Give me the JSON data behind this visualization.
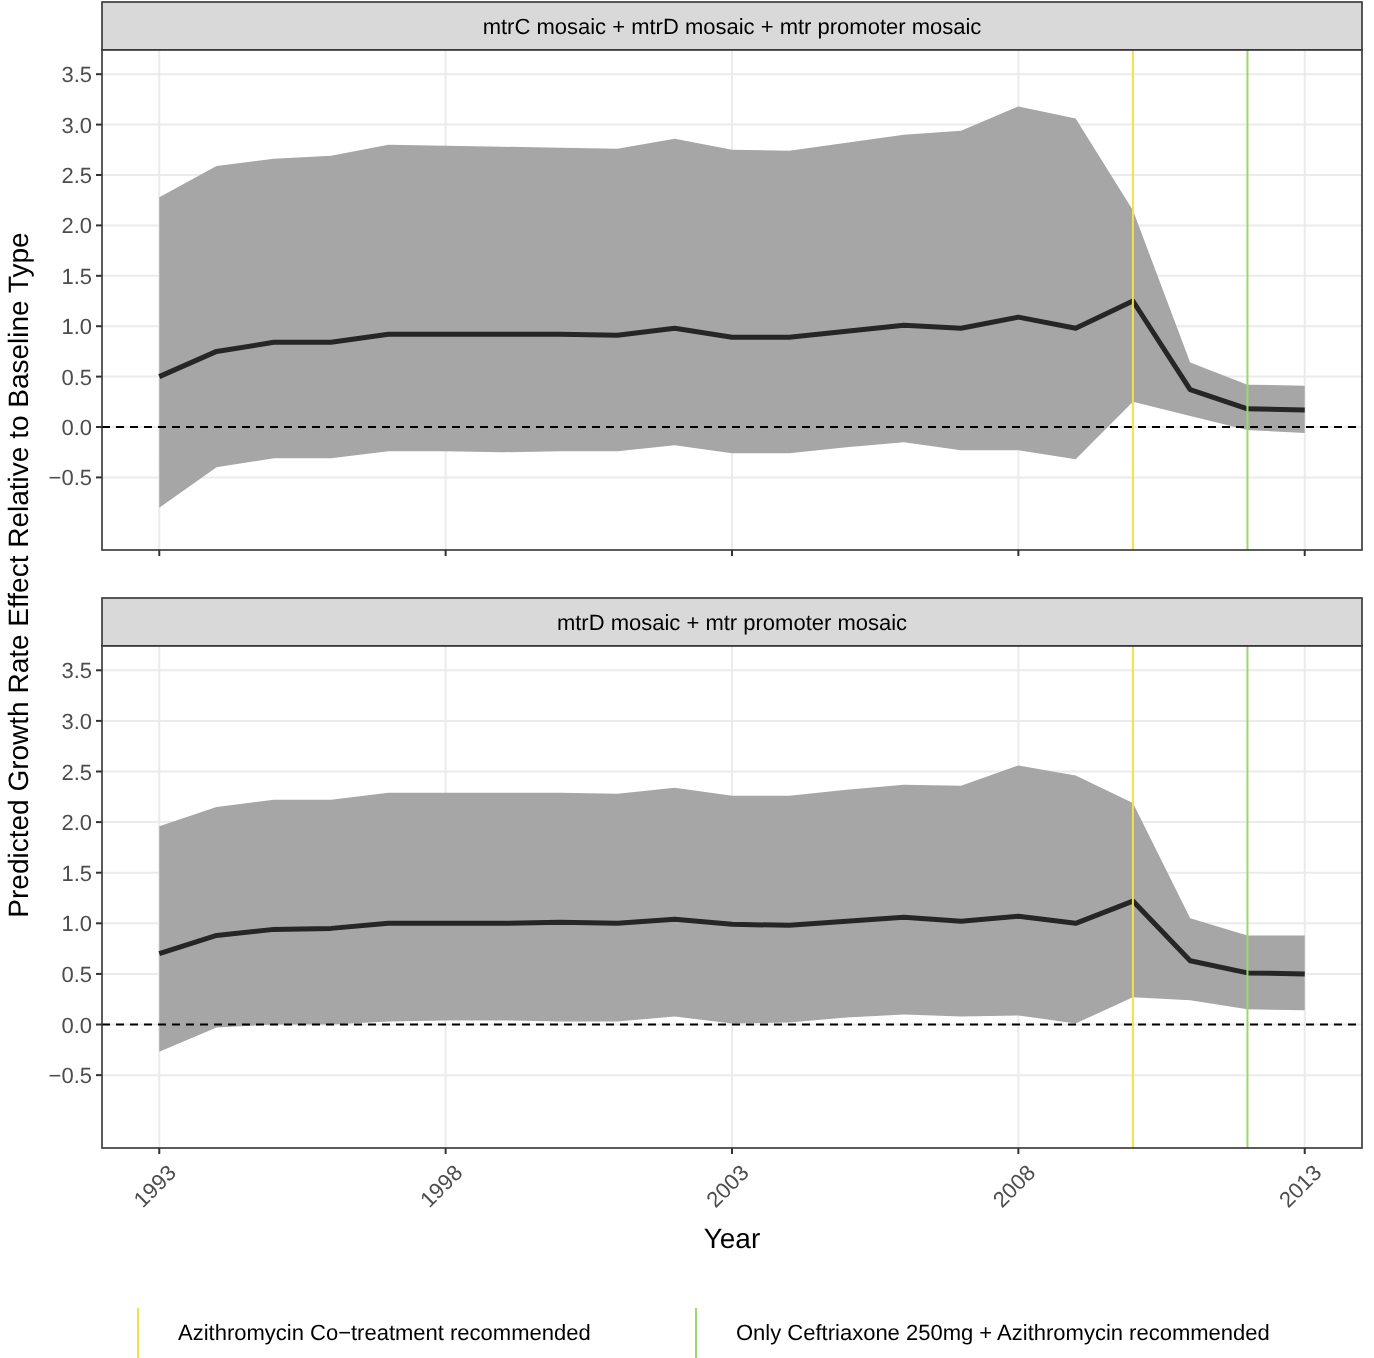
{
  "chart_data": [
    {
      "type": "line",
      "title": "mtrC mosaic + mtrD mosaic + mtr promoter mosaic",
      "ylabel": "Predicted Growth Rate Effect Relative to Baseline Type",
      "x": [
        1993,
        1994,
        1995,
        1996,
        1997,
        1998,
        1999,
        2000,
        2001,
        2002,
        2003,
        2004,
        2005,
        2006,
        2007,
        2008,
        2009,
        2010,
        2011,
        2012,
        2013
      ],
      "series": [
        {
          "color": "#262626",
          "values": [
            0.5,
            0.75,
            0.84,
            0.84,
            0.92,
            0.92,
            0.92,
            0.92,
            0.91,
            0.98,
            0.89,
            0.89,
            0.95,
            1.01,
            0.98,
            1.09,
            0.98,
            1.25,
            0.37,
            0.18,
            0.17
          ],
          "upper": [
            2.28,
            2.59,
            2.66,
            2.69,
            2.8,
            2.79,
            2.78,
            2.77,
            2.76,
            2.86,
            2.75,
            2.74,
            2.82,
            2.9,
            2.94,
            3.18,
            3.06,
            2.15,
            0.64,
            0.42,
            0.41
          ],
          "lower": [
            -0.8,
            -0.4,
            -0.31,
            -0.31,
            -0.24,
            -0.24,
            -0.25,
            -0.24,
            -0.24,
            -0.18,
            -0.26,
            -0.26,
            -0.2,
            -0.15,
            -0.23,
            -0.23,
            -0.32,
            0.25,
            0.11,
            -0.03,
            -0.06
          ]
        }
      ],
      "xlim": [
        1992.0,
        2014.0
      ],
      "xticks": [
        1993,
        1998,
        2003,
        2008,
        2013
      ],
      "ylim": [
        -1.22,
        3.74
      ],
      "yticks": [
        {
          "value": -0.5,
          "label": "−0.5"
        },
        {
          "value": 0,
          "label": "0.0"
        },
        0.5,
        {
          "value": 1,
          "label": "1.0"
        },
        1.5,
        {
          "value": 2,
          "label": "2.0"
        },
        2.5,
        {
          "value": 3,
          "label": "3.0"
        },
        3.5
      ],
      "tick_labels": "y",
      "grid": true,
      "line_style": "solid",
      "ref_lines": [
        {
          "axis": "y",
          "value": 0,
          "color": "#000000",
          "line_style": "dashed"
        },
        {
          "axis": "x",
          "value": 2010,
          "color": "#f5e04a"
        },
        {
          "axis": "x",
          "value": 2012,
          "color": "#9fd66b"
        }
      ]
    },
    {
      "type": "line",
      "title": "mtrD mosaic + mtr promoter mosaic",
      "xlabel": "Year",
      "x": [
        1993,
        1994,
        1995,
        1996,
        1997,
        1998,
        1999,
        2000,
        2001,
        2002,
        2003,
        2004,
        2005,
        2006,
        2007,
        2008,
        2009,
        2010,
        2011,
        2012,
        2013
      ],
      "series": [
        {
          "color": "#262626",
          "values": [
            0.7,
            0.88,
            0.94,
            0.95,
            1.0,
            1.0,
            1.0,
            1.01,
            1.0,
            1.04,
            0.99,
            0.98,
            1.02,
            1.06,
            1.02,
            1.07,
            1.0,
            1.22,
            0.63,
            0.51,
            0.5
          ],
          "upper": [
            1.96,
            2.15,
            2.22,
            2.22,
            2.29,
            2.29,
            2.29,
            2.29,
            2.28,
            2.34,
            2.26,
            2.26,
            2.32,
            2.37,
            2.36,
            2.56,
            2.46,
            2.19,
            1.05,
            0.88,
            0.88
          ],
          "lower": [
            -0.27,
            -0.03,
            0.0,
            0.0,
            0.03,
            0.04,
            0.04,
            0.03,
            0.03,
            0.08,
            0.01,
            0.02,
            0.07,
            0.1,
            0.08,
            0.09,
            0.01,
            0.27,
            0.24,
            0.15,
            0.14
          ]
        }
      ],
      "xlim": [
        1992.0,
        2014.0
      ],
      "xticks": [
        1993,
        1998,
        2003,
        2008,
        2013
      ],
      "ylim": [
        -1.22,
        3.74
      ],
      "yticks": [
        {
          "value": -0.5,
          "label": "−0.5"
        },
        {
          "value": 0,
          "label": "0.0"
        },
        0.5,
        {
          "value": 1,
          "label": "1.0"
        },
        1.5,
        {
          "value": 2,
          "label": "2.0"
        },
        2.5,
        {
          "value": 3,
          "label": "3.0"
        },
        3.5
      ],
      "grid": true,
      "line_style": "solid",
      "legend": "bottom",
      "ref_lines": [
        {
          "axis": "y",
          "value": 0,
          "color": "#000000",
          "line_style": "dashed"
        },
        {
          "axis": "x",
          "value": 2010,
          "color": "#f5e04a",
          "label": "Azithromycin Co−treatment recommended"
        },
        {
          "axis": "x",
          "value": 2012,
          "color": "#9fd66b",
          "label": "Only Ceftriaxone 250mg + Azithromycin recommended"
        }
      ]
    }
  ]
}
